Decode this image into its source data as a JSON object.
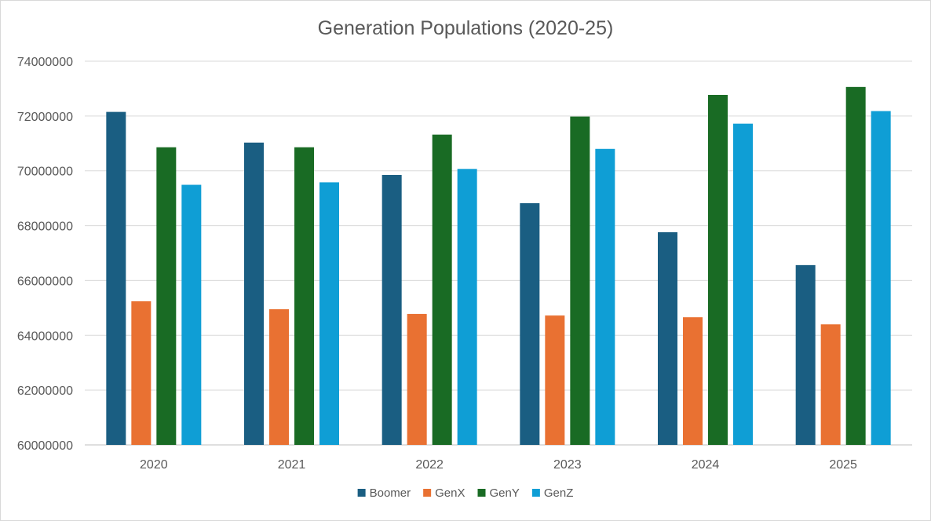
{
  "chart_data": {
    "type": "bar",
    "title": "Generation Populations (2020-25)",
    "xlabel": "",
    "ylabel": "",
    "categories": [
      "2020",
      "2021",
      "2022",
      "2023",
      "2024",
      "2025"
    ],
    "ylim": [
      60000000,
      74000000
    ],
    "yticks": [
      60000000,
      62000000,
      64000000,
      66000000,
      68000000,
      70000000,
      72000000,
      74000000
    ],
    "ytick_labels": [
      "60000000",
      "62000000",
      "64000000",
      "66000000",
      "68000000",
      "70000000",
      "72000000",
      "74000000"
    ],
    "grid": true,
    "legend_position": "bottom",
    "series": [
      {
        "name": "Boomer",
        "color": "#1a5e82",
        "values": [
          72150000,
          71030000,
          69850000,
          68820000,
          67760000,
          66560000
        ]
      },
      {
        "name": "GenX",
        "color": "#e97132",
        "values": [
          65240000,
          64950000,
          64780000,
          64720000,
          64660000,
          64400000
        ]
      },
      {
        "name": "GenY",
        "color": "#196b24",
        "values": [
          70860000,
          70860000,
          71320000,
          71980000,
          72770000,
          73060000
        ]
      },
      {
        "name": "GenZ",
        "color": "#0f9ed5",
        "values": [
          69490000,
          69580000,
          70070000,
          70800000,
          71720000,
          72180000
        ]
      }
    ]
  }
}
